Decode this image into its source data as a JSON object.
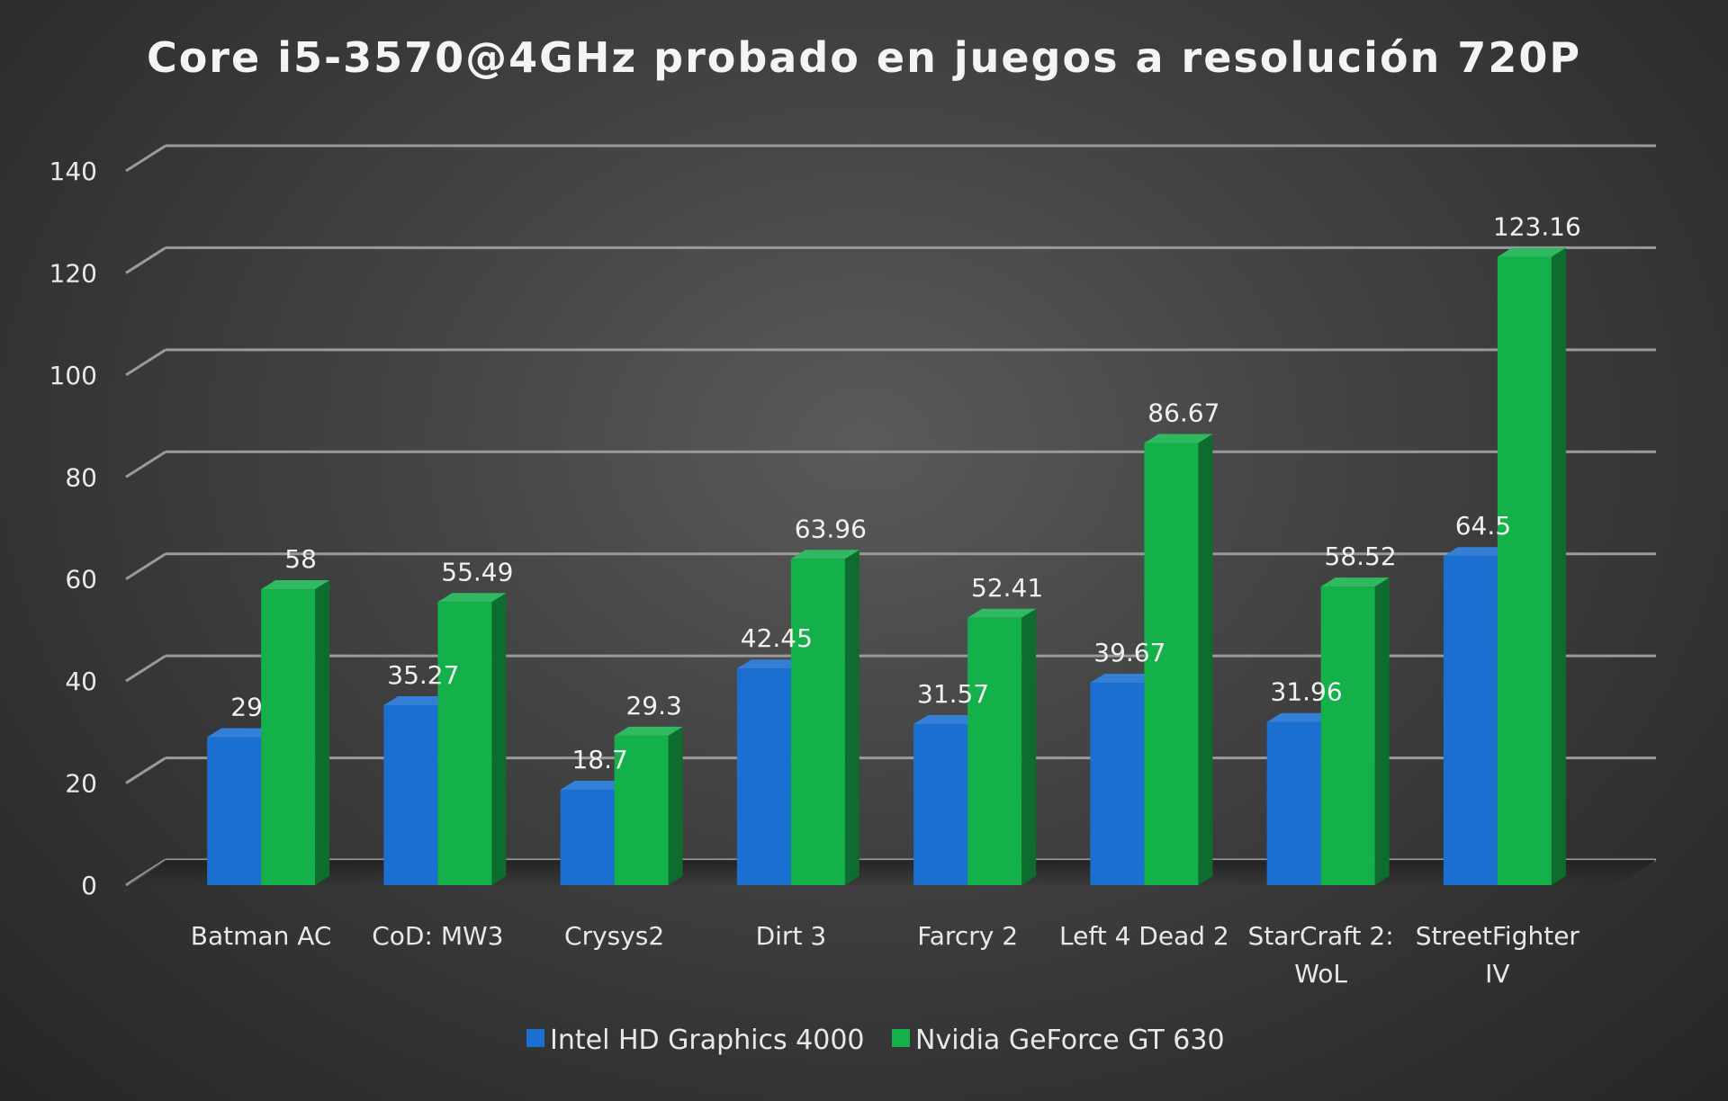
{
  "chart_data": {
    "type": "bar",
    "title": "Core i5-3570@4GHz probado  en juegos a resolución 720P",
    "xlabel": "",
    "ylabel": "",
    "ylim": [
      0,
      140
    ],
    "yticks": [
      0,
      20,
      40,
      60,
      80,
      100,
      120,
      140
    ],
    "grid": true,
    "legend_position": "bottom",
    "categories": [
      [
        "Batman AC"
      ],
      [
        "CoD: MW3"
      ],
      [
        "Crysys2"
      ],
      [
        "Dirt 3"
      ],
      [
        "Farcry 2"
      ],
      [
        "Left 4 Dead 2"
      ],
      [
        "StarCraft 2:",
        "WoL"
      ],
      [
        "StreetFighter",
        "IV"
      ]
    ],
    "series": [
      {
        "name": "Intel HD Graphics 4000",
        "color": "#1a6fd1",
        "values": [
          29,
          35.27,
          18.7,
          42.45,
          31.57,
          39.67,
          31.96,
          64.5
        ]
      },
      {
        "name": "Nvidia GeForce GT 630",
        "color": "#14b04a",
        "values": [
          58,
          55.49,
          29.3,
          63.96,
          52.41,
          86.67,
          58.52,
          123.16
        ]
      }
    ],
    "value_labels": [
      [
        "29",
        "35.27",
        "18.7",
        "42.45",
        "31.57",
        "39.67",
        "31.96",
        "64.5"
      ],
      [
        "58",
        "55.49",
        "29.3",
        "63.96",
        "52.41",
        "86.67",
        "58.52",
        "123.16"
      ]
    ]
  }
}
